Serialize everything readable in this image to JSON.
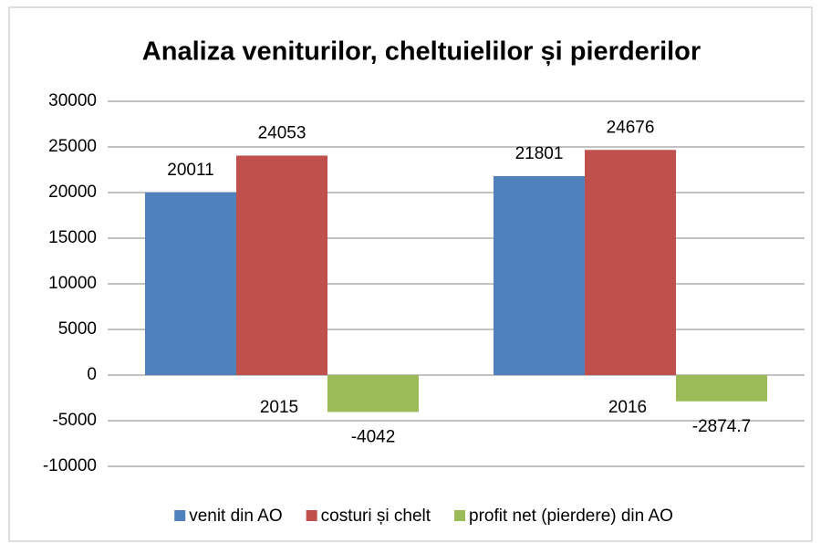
{
  "chart_data": {
    "type": "bar",
    "title": "Analiza veniturilor, cheltuielilor și pierderilor",
    "categories": [
      "2015",
      "2016"
    ],
    "series": [
      {
        "name": "venit din AO",
        "color": "#4f81bd",
        "values": [
          20011,
          21801
        ]
      },
      {
        "name": "costuri și chelt",
        "color": "#c0504d",
        "values": [
          24053,
          24676
        ]
      },
      {
        "name": "profit net (pierdere) din AO",
        "color": "#9bbb59",
        "values": [
          -4042,
          -2874.7
        ]
      }
    ],
    "ylim": [
      -10000,
      30000
    ],
    "yticks": [
      -10000,
      -5000,
      0,
      5000,
      10000,
      15000,
      20000,
      25000,
      30000
    ],
    "grid": true,
    "legend": "bottom"
  }
}
